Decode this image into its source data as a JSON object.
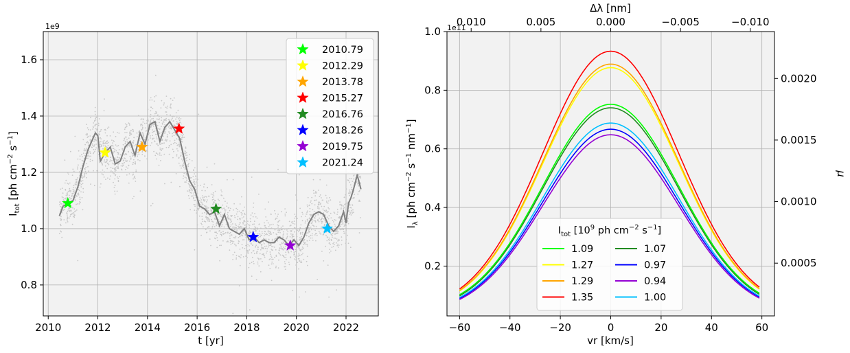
{
  "chart_data": [
    {
      "type": "scatter",
      "xlabel": "t [yr]",
      "ylabel_main": "I",
      "ylabel_sub": "tot",
      "ylabel_rest": " [ph cm",
      "ylabel_exp": "−2",
      "ylabel_end": " s",
      "ylabel_exp2": "−1",
      "ylabel_close": "]",
      "offset_text": "1e9",
      "xlim": [
        2009.8,
        2023.3
      ],
      "ylim": [
        6.9,
        17.0
      ],
      "y_unit_note": "values in units of 1e8",
      "grid": true,
      "xticks": [
        2010,
        2012,
        2014,
        2016,
        2018,
        2020,
        2022
      ],
      "xtick_labels": [
        "2010",
        "2012",
        "2014",
        "2016",
        "2018",
        "2020",
        "2022"
      ],
      "yticks": [
        8.0,
        10.0,
        12.0,
        14.0,
        16.0
      ],
      "ytick_labels": [
        "0.8",
        "1.0",
        "1.2",
        "1.4",
        "1.6"
      ],
      "legend_position": "top-right",
      "smoothed_curve": {
        "color": "#808080",
        "x": [
          2010.45,
          2010.6,
          2010.8,
          2011.0,
          2011.2,
          2011.4,
          2011.6,
          2011.8,
          2011.9,
          2012.0,
          2012.1,
          2012.3,
          2012.5,
          2012.7,
          2012.9,
          2013.1,
          2013.3,
          2013.5,
          2013.7,
          2013.9,
          2014.1,
          2014.3,
          2014.5,
          2014.7,
          2014.9,
          2015.1,
          2015.3,
          2015.5,
          2015.7,
          2015.9,
          2016.1,
          2016.3,
          2016.5,
          2016.7,
          2016.9,
          2017.1,
          2017.3,
          2017.5,
          2017.7,
          2017.9,
          2018.1,
          2018.3,
          2018.5,
          2018.7,
          2018.9,
          2019.1,
          2019.3,
          2019.5,
          2019.7,
          2019.9,
          2020.1,
          2020.3,
          2020.5,
          2020.7,
          2020.9,
          2021.1,
          2021.3,
          2021.5,
          2021.7,
          2021.9,
          2022.0,
          2022.1,
          2022.2,
          2022.3,
          2022.45,
          2022.6
        ],
        "y": [
          10.45,
          10.8,
          10.9,
          11.0,
          11.5,
          12.2,
          12.8,
          13.2,
          13.4,
          13.3,
          12.4,
          12.7,
          12.9,
          12.3,
          12.4,
          12.9,
          13.1,
          12.6,
          13.4,
          13.0,
          13.7,
          13.8,
          13.1,
          13.6,
          13.8,
          13.5,
          13.2,
          12.4,
          11.7,
          11.4,
          10.8,
          10.7,
          10.5,
          10.6,
          10.1,
          10.5,
          10.0,
          9.9,
          9.8,
          10.0,
          9.6,
          9.7,
          9.5,
          9.6,
          9.5,
          9.5,
          9.7,
          9.6,
          9.4,
          9.6,
          9.4,
          9.7,
          10.2,
          10.5,
          10.6,
          10.5,
          10.1,
          9.9,
          10.1,
          10.6,
          10.2,
          10.9,
          11.1,
          11.4,
          11.9,
          11.4
        ]
      },
      "markers": [
        {
          "label": "2010.79",
          "x": 2010.79,
          "y": 10.9,
          "color": "#00ff00"
        },
        {
          "label": "2012.29",
          "x": 2012.29,
          "y": 12.7,
          "color": "#ffff00"
        },
        {
          "label": "2013.78",
          "x": 2013.78,
          "y": 12.9,
          "color": "#ffa500"
        },
        {
          "label": "2015.27",
          "x": 2015.27,
          "y": 13.55,
          "color": "#ff0000"
        },
        {
          "label": "2016.76",
          "x": 2016.76,
          "y": 10.7,
          "color": "#228b22"
        },
        {
          "label": "2018.26",
          "x": 2018.26,
          "y": 9.7,
          "color": "#0000ff"
        },
        {
          "label": "2019.75",
          "x": 2019.75,
          "y": 9.4,
          "color": "#9400d3"
        },
        {
          "label": "2021.24",
          "x": 2021.24,
          "y": 10.0,
          "color": "#00bfff"
        }
      ]
    },
    {
      "type": "line",
      "xlabel": "vr [km/s]",
      "ylabel_main": "I",
      "ylabel_sub": "λ",
      "ylabel_rest": " [ph cm",
      "ylabel_exp": "−2",
      "ylabel_end": " s",
      "ylabel_exp2": "−1",
      "ylabel_end2": " nm",
      "ylabel_exp3": "−1",
      "ylabel_close": "]",
      "offset_text": "1e11",
      "right_ylabel": "μ",
      "top_xlabel": "Δλ [nm]",
      "xlim": [
        -65,
        65
      ],
      "ylim": [
        0.03,
        1.0
      ],
      "grid": true,
      "xticks": [
        -60,
        -40,
        -20,
        0,
        20,
        40,
        60
      ],
      "xtick_labels": [
        "−60",
        "−40",
        "−20",
        "0",
        "20",
        "40",
        "60"
      ],
      "yticks": [
        0.2,
        0.4,
        0.6,
        0.8,
        1.0
      ],
      "ytick_labels": [
        "0.2",
        "0.4",
        "0.6",
        "0.8",
        "1.0"
      ],
      "top_xticks": [
        0.01,
        0.005,
        0.0,
        -0.005,
        -0.01
      ],
      "top_xtick_labels": [
        "0.010",
        "0.005",
        "0.000",
        "−0.005",
        "−0.010"
      ],
      "top_nm_per_kms": -0.0001805,
      "right_yticks": [
        0.0005,
        0.001,
        0.0015,
        0.002
      ],
      "right_ytick_labels": [
        "0.0005",
        "0.0010",
        "0.0015",
        "0.0020"
      ],
      "right_mu_per_unit": 0.002381,
      "x_range": [
        -60,
        59
      ],
      "gaussian_sigma": 27,
      "legend_title_main": "I",
      "legend_title_sub": "tot",
      "legend_title_rest": " [10",
      "legend_title_exp": "9",
      "legend_title_mid": " ph cm",
      "legend_title_exp2": "−2",
      "legend_title_end": " s",
      "legend_title_exp3": "−1",
      "legend_title_close": "]",
      "legend_position": "lower-center",
      "series": [
        {
          "name": "1.09",
          "color": "#00ff00",
          "peak": 0.752,
          "wing": 0.1025
        },
        {
          "name": "1.27",
          "color": "#ffff00",
          "peak": 0.877,
          "wing": 0.115
        },
        {
          "name": "1.29",
          "color": "#ffa500",
          "peak": 0.889,
          "wing": 0.117
        },
        {
          "name": "1.35",
          "color": "#ff0000",
          "peak": 0.933,
          "wing": 0.122
        },
        {
          "name": "1.07",
          "color": "#228b22",
          "peak": 0.74,
          "wing": 0.0985
        },
        {
          "name": "0.97",
          "color": "#0000ff",
          "peak": 0.667,
          "wing": 0.09
        },
        {
          "name": "0.94",
          "color": "#9400d3",
          "peak": 0.648,
          "wing": 0.086
        },
        {
          "name": "1.00",
          "color": "#00bfff",
          "peak": 0.688,
          "wing": 0.093
        }
      ]
    }
  ]
}
